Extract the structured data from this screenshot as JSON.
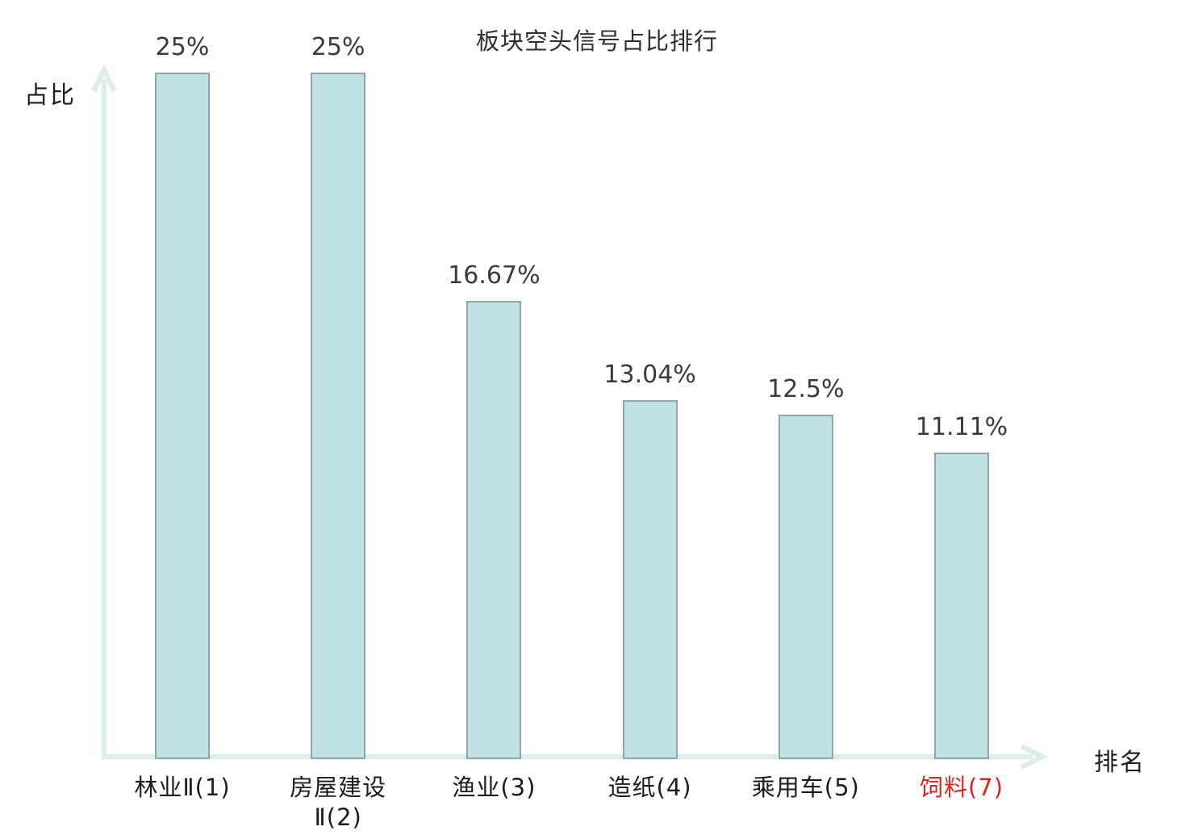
{
  "title": "板块空头信号占比排行",
  "axes": {
    "y_label": "占比",
    "x_label": "排名"
  },
  "colors": {
    "bar_fill": "#bfe0e5",
    "bar_border": "#8ea6aa",
    "axis": "#ddeeea",
    "highlight": "#e12222",
    "text": "#2e2e2e"
  },
  "chart_data": {
    "type": "bar",
    "title": "板块空头信号占比排行",
    "xlabel": "排名",
    "ylabel": "占比",
    "ylim": [
      0,
      25
    ],
    "grid": false,
    "legend": false,
    "categories": [
      "林业Ⅱ(1)",
      "房屋建设Ⅱ(2)",
      "渔业(3)",
      "造纸(4)",
      "乘用车(5)",
      "饲料(7)"
    ],
    "category_display": [
      "林业Ⅱ(1)",
      "房屋建设\nⅡ(2)",
      "渔业(3)",
      "造纸(4)",
      "乘用车(5)",
      "饲料(7)"
    ],
    "values": [
      25,
      25,
      16.67,
      13.04,
      12.5,
      11.11
    ],
    "value_labels": [
      "25%",
      "25%",
      "16.67%",
      "13.04%",
      "12.5%",
      "11.11%"
    ],
    "highlighted_category_index": 5
  }
}
